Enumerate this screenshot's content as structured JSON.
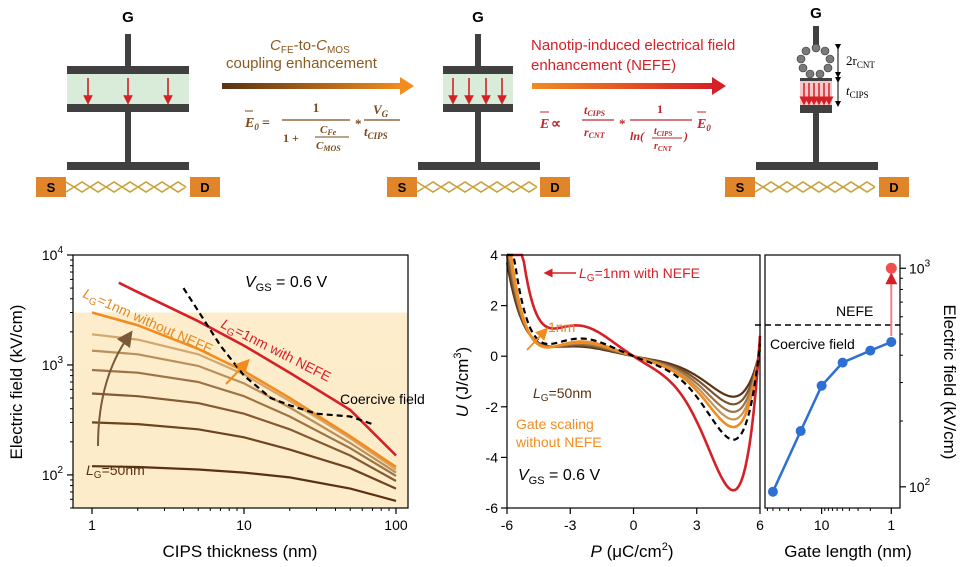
{
  "schematic": {
    "device1": {
      "gate": "G",
      "source": "S",
      "drain": "D"
    },
    "arrow1": {
      "title_prefix": "C",
      "title_sub1": "FE",
      "title_mid": "-to-",
      "title_c2": "C",
      "title_sub2": "MOS",
      "title_line2": "coupling enhancement",
      "eq_lhs": "E",
      "eq_lhs_sub": "0",
      "eq_eq": " = ",
      "eq_num": "1",
      "eq_den_one": "1 + ",
      "eq_den_num": "C",
      "eq_den_num_sub": "Fe",
      "eq_den_den": "C",
      "eq_den_den_sub": "MOS",
      "eq_times": "*",
      "eq_v": "V",
      "eq_v_sub": "G",
      "eq_t": "t",
      "eq_t_sub": "CIPS"
    },
    "device2": {
      "gate": "G",
      "source": "S",
      "drain": "D"
    },
    "arrow2": {
      "title_line1": "Nanotip-induced electrical field",
      "title_line2": "enhancement (NEFE)",
      "eq_lhs": "E",
      "eq_prop": " ∝ ",
      "eq_t": "t",
      "eq_t_sub": "CIPS",
      "eq_r": "r",
      "eq_r_sub": "CNT",
      "eq_times": "*",
      "eq_one": "1",
      "eq_ln": "ln(",
      "eq_ln_close": ")",
      "eq_e0": "E",
      "eq_e0_sub": "0"
    },
    "device3": {
      "gate": "G",
      "source": "S",
      "drain": "D",
      "r_label": "2r",
      "r_sub": "CNT",
      "t_label": "t",
      "t_sub": "CIPS"
    }
  },
  "colors": {
    "dark_brown": "#5a3212",
    "orange": "#f28c1e",
    "red": "#d62027",
    "fe_fill": "#d9ecd9",
    "sd_fill": "#e0852a",
    "bg_fill": "#fdebc6",
    "blue": "#2e6fd4",
    "gray": "#404040"
  },
  "chart_data": [
    {
      "type": "line",
      "xlabel": "CIPS thickness (nm)",
      "ylabel": "Electric field (kV/cm)",
      "x_scale": "log",
      "y_scale": "log",
      "xlim": [
        0.75,
        120
      ],
      "ylim": [
        50,
        10000
      ],
      "xticks": [
        "1",
        "10",
        "100"
      ],
      "yticks": [
        {
          "base": "10",
          "exp": "2"
        },
        {
          "base": "10",
          "exp": "3"
        },
        {
          "base": "10",
          "exp": "4"
        }
      ],
      "annotation_vgs": {
        "v": "V",
        "sub": "GS",
        "rest": " = 0.6 V"
      },
      "label_nefe": {
        "l": "L",
        "sub": "G",
        "rest": "=1nm with NEFE"
      },
      "label_without": {
        "l": "L",
        "sub": "G",
        "rest": "=1nm without NEFE"
      },
      "label_50": {
        "l": "L",
        "sub": "G",
        "rest": "=50nm"
      },
      "label_coercive": "Coercive field",
      "series": [
        {
          "x": [
            1,
            2,
            5,
            10,
            20,
            50,
            100
          ],
          "y": [
            120,
            118,
            112,
            105,
            95,
            75,
            58
          ]
        },
        {
          "x": [
            1,
            2,
            5,
            10,
            20,
            50,
            100
          ],
          "y": [
            300,
            290,
            260,
            220,
            170,
            115,
            75
          ]
        },
        {
          "x": [
            1,
            2,
            5,
            10,
            20,
            50,
            100
          ],
          "y": [
            550,
            520,
            450,
            360,
            260,
            150,
            88
          ]
        },
        {
          "x": [
            1,
            2,
            5,
            10,
            20,
            50,
            100
          ],
          "y": [
            900,
            850,
            700,
            520,
            340,
            175,
            98
          ]
        },
        {
          "x": [
            1,
            2,
            5,
            10,
            20,
            50,
            100
          ],
          "y": [
            1350,
            1250,
            980,
            680,
            410,
            195,
            105
          ]
        },
        {
          "x": [
            1,
            2,
            5,
            10,
            20,
            50,
            100
          ],
          "y": [
            1900,
            1700,
            1250,
            820,
            470,
            215,
            112
          ]
        },
        {
          "x": [
            1,
            2,
            5,
            10,
            20,
            50,
            100
          ],
          "y": [
            3000,
            2300,
            1400,
            880,
            500,
            225,
            118
          ]
        },
        {
          "x": [
            1.5,
            2,
            5,
            10,
            20,
            50,
            100
          ],
          "y": [
            5600,
            4600,
            2500,
            1500,
            850,
            390,
            150
          ]
        }
      ],
      "coercive": {
        "x": [
          4,
          5,
          7,
          10,
          15,
          20,
          30,
          50,
          70
        ],
        "y": [
          5000,
          3100,
          1500,
          800,
          500,
          430,
          360,
          340,
          290
        ]
      }
    },
    {
      "type": "line",
      "xlabel": "P (μC/cm²)",
      "xlabel_parts": {
        "p": "P",
        "rest": " (μC/cm",
        "sup": "2",
        "close": ")"
      },
      "ylabel_parts": {
        "u": "U",
        "rest": " (J/cm",
        "sup": "3",
        "close": ")"
      },
      "xlim": [
        -6,
        6
      ],
      "ylim": [
        -6,
        4
      ],
      "xticks": [
        "-6",
        "-3",
        "0",
        "3",
        "6"
      ],
      "yticks": [
        "-6",
        "-4",
        "-2",
        "0",
        "2",
        "4"
      ],
      "annotation_vgs": {
        "v": "V",
        "sub": "GS",
        "rest": " = 0.6 V"
      },
      "label_nefe": {
        "l": "L",
        "sub": "G",
        "rest": "=1nm with NEFE"
      },
      "label_1nm": "1nm",
      "label_50": {
        "l": "L",
        "sub": "G",
        "rest": "=50nm"
      },
      "label_gate1": "Gate scaling",
      "label_gate2": "without NEFE",
      "curves_b_min": [
        -1.6,
        -1.9,
        -2.2,
        -2.5,
        -2.8,
        -5.3
      ],
      "dashed_b_min": -3.3
    },
    {
      "type": "scatter",
      "xlabel": "Gate length (nm)",
      "ylabel": "Electric field (kV/cm)",
      "x_scale": "log",
      "x_reversed": true,
      "y_scale": "log",
      "xlim": [
        65,
        0.75
      ],
      "ylim": [
        80,
        1150
      ],
      "xticks": [
        "10",
        "1"
      ],
      "yticks": [
        {
          "base": "10",
          "exp": "2"
        },
        {
          "base": "10",
          "exp": "3"
        }
      ],
      "x": [
        50,
        20,
        10,
        5,
        2,
        1
      ],
      "y": [
        95,
        180,
        290,
        370,
        420,
        460
      ],
      "nefe_point": {
        "x": 1,
        "y": 1000
      },
      "coercive_y": 550,
      "label_nefe": "NEFE",
      "label_coercive": "Coercive field"
    }
  ]
}
